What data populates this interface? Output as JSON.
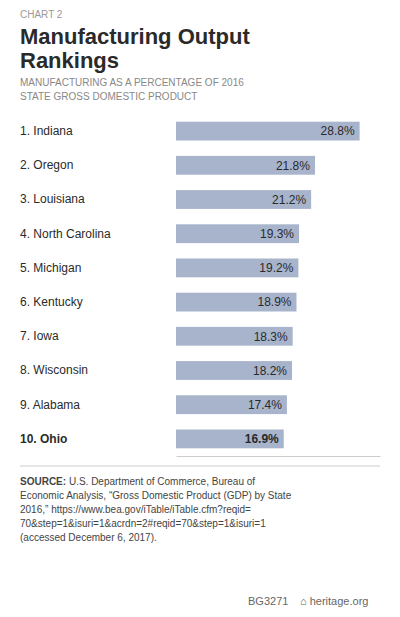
{
  "chart_data": {
    "type": "bar",
    "orientation": "horizontal",
    "title": "Manufacturing Output\nRankings",
    "subtitle": "MANUFACTURING AS A PERCENTAGE OF 2016\nSTATE GROSS DOMESTIC PRODUCT",
    "categories": [
      "1. Indiana",
      "2. Oregon",
      "3. Louisiana",
      "4. North Carolina",
      "5. Michigan",
      "6. Kentucky",
      "7. Iowa",
      "8. Wisconsin",
      "9. Alabama",
      "10. Ohio"
    ],
    "values": [
      28.8,
      21.8,
      21.2,
      19.3,
      19.2,
      18.9,
      18.3,
      18.2,
      17.4,
      16.9
    ],
    "value_labels": [
      "28.8%",
      "21.8%",
      "21.2%",
      "19.3%",
      "19.2%",
      "18.9%",
      "18.3%",
      "18.2%",
      "17.4%",
      "16.9%"
    ],
    "data_labels": true,
    "color": "#a8b4cc",
    "xlim": [
      0,
      32
    ],
    "tick_labels": "y",
    "grid": false,
    "annotations": [
      "CHART 2",
      "SOURCE:",
      " U.S. Department of Commerce, Bureau of\nEconomic Analysis, “Gross Domestic Product (GDP) by State\n2016,” https://www.bea.gov/iTable/iTable.cfm?reqid=\n70&step=1&isuri=1&acrdn=2#reqid=70&step=1&isuri=1\n(accessed December 6, 2017).",
      "BG3271",
      "⌂ heritage.org"
    ]
  }
}
